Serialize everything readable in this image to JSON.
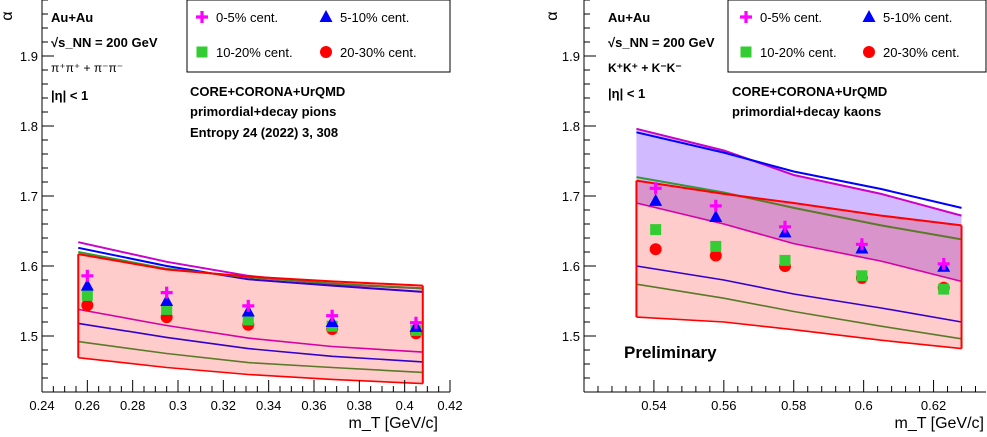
{
  "chart_data": [
    {
      "type": "scatter",
      "panel": "pions",
      "ylabel": "α",
      "xlabel": "m_T [GeV/c]",
      "xlim": [
        0.24,
        0.42
      ],
      "ylim": [
        1.42,
        1.98
      ],
      "xticks": [
        0.24,
        0.26,
        0.28,
        0.3,
        0.32,
        0.34,
        0.36,
        0.38,
        0.4,
        0.42
      ],
      "xtick_labels": [
        "0.24",
        "0.26",
        "0.28",
        "0.3",
        "0.32",
        "0.34",
        "0.36",
        "0.38",
        "0.4",
        "0.42"
      ],
      "yticks": [
        1.5,
        1.6,
        1.7,
        1.8,
        1.9
      ],
      "ytick_labels": [
        "1.5",
        "1.6",
        "1.7",
        "1.8",
        "1.9"
      ],
      "grid": false,
      "info": {
        "system": "Au+Au",
        "energy": "√s_NN = 200 GeV",
        "particles": "π⁺π⁺ + π⁻π⁻",
        "eta": "|η| < 1",
        "model_line1": "CORE+CORONA+UrQMD",
        "model_line2": "primordial+decay pions",
        "reference": "Entropy 24 (2022) 3, 308"
      },
      "legend": [
        {
          "label": "0-5% cent.",
          "marker": "plus",
          "color": "#ff00ff"
        },
        {
          "label": "5-10% cent.",
          "marker": "triangle",
          "color": "#0000ff"
        },
        {
          "label": "10-20% cent.",
          "marker": "square",
          "color": "#33cc33"
        },
        {
          "label": "20-30% cent.",
          "marker": "circle",
          "color": "#ff0000"
        }
      ],
      "legend_position": "top-right",
      "series": [
        {
          "name": "0-5% cent.",
          "marker": "plus",
          "color": "#ff00ff",
          "x": [
            0.26,
            0.295,
            0.331,
            0.368,
            0.405
          ],
          "y": [
            1.586,
            1.562,
            1.543,
            1.529,
            1.519
          ]
        },
        {
          "name": "5-10% cent.",
          "marker": "triangle",
          "color": "#0000ff",
          "x": [
            0.26,
            0.295,
            0.331,
            0.368,
            0.405
          ],
          "y": [
            1.572,
            1.55,
            1.535,
            1.52,
            1.513
          ]
        },
        {
          "name": "10-20% cent.",
          "marker": "square",
          "color": "#33cc33",
          "x": [
            0.26,
            0.295,
            0.331,
            0.368,
            0.405
          ],
          "y": [
            1.558,
            1.538,
            1.523,
            1.514,
            1.508
          ]
        },
        {
          "name": "20-30% cent.",
          "marker": "circle",
          "color": "#ff0000",
          "x": [
            0.26,
            0.295,
            0.331,
            0.368,
            0.405
          ],
          "y": [
            1.544,
            1.527,
            1.516,
            1.51,
            1.504
          ]
        }
      ],
      "bands": [
        {
          "color": "#cc00cc",
          "x": [
            0.256,
            0.295,
            0.331,
            0.368,
            0.408
          ],
          "upper": [
            1.634,
            1.606,
            1.586,
            1.574,
            1.568
          ],
          "lower": [
            1.538,
            1.515,
            1.497,
            1.485,
            1.477
          ]
        },
        {
          "color": "#0000ff",
          "x": [
            0.256,
            0.295,
            0.331,
            0.368,
            0.408
          ],
          "upper": [
            1.626,
            1.6,
            1.581,
            1.572,
            1.563
          ],
          "lower": [
            1.518,
            1.498,
            1.482,
            1.471,
            1.463
          ]
        },
        {
          "color": "#339933",
          "x": [
            0.256,
            0.295,
            0.331,
            0.368,
            0.408
          ],
          "upper": [
            1.62,
            1.596,
            1.584,
            1.575,
            1.568
          ],
          "lower": [
            1.492,
            1.475,
            1.462,
            1.455,
            1.448
          ]
        },
        {
          "color": "#ff0000",
          "fill": true,
          "x": [
            0.256,
            0.295,
            0.331,
            0.368,
            0.408
          ],
          "upper": [
            1.617,
            1.595,
            1.585,
            1.578,
            1.572
          ],
          "lower": [
            1.469,
            1.455,
            1.445,
            1.438,
            1.432
          ]
        }
      ]
    },
    {
      "type": "scatter",
      "panel": "kaons",
      "ylabel": "α",
      "xlabel": "m_T [GeV/c]",
      "xlim": [
        0.52,
        0.635
      ],
      "ylim": [
        1.42,
        1.98
      ],
      "xticks": [
        0.54,
        0.56,
        0.58,
        0.6,
        0.62
      ],
      "xtick_labels": [
        "0.54",
        "0.56",
        "0.58",
        "0.6",
        "0.62"
      ],
      "yticks": [
        1.5,
        1.6,
        1.7,
        1.8,
        1.9
      ],
      "ytick_labels": [
        "1.5",
        "1.6",
        "1.7",
        "1.8",
        "1.9"
      ],
      "grid": false,
      "info": {
        "system": "Au+Au",
        "energy": "√s_NN = 200 GeV",
        "particles": "K⁺K⁺ + K⁻K⁻",
        "eta": "|η| < 1",
        "model_line1": "CORE+CORONA+UrQMD",
        "model_line2": "primordial+decay kaons",
        "status": "Preliminary"
      },
      "legend": [
        {
          "label": "0-5% cent.",
          "marker": "plus",
          "color": "#ff00ff"
        },
        {
          "label": "5-10% cent.",
          "marker": "triangle",
          "color": "#0000ff"
        },
        {
          "label": "10-20% cent.",
          "marker": "square",
          "color": "#33cc33"
        },
        {
          "label": "20-30% cent.",
          "marker": "circle",
          "color": "#ff0000"
        }
      ],
      "legend_position": "top-right",
      "series": [
        {
          "name": "0-5% cent.",
          "marker": "plus",
          "color": "#ff00ff",
          "x": [
            0.5405,
            0.5577,
            0.5775,
            0.5995,
            0.6229
          ],
          "y": [
            1.711,
            1.686,
            1.656,
            1.631,
            1.603
          ]
        },
        {
          "name": "5-10% cent.",
          "marker": "triangle",
          "color": "#0000ff",
          "x": [
            0.5405,
            0.5577,
            0.5775,
            0.5995,
            0.6229
          ],
          "y": [
            1.693,
            1.67,
            1.648,
            1.625,
            1.599
          ]
        },
        {
          "name": "10-20% cent.",
          "marker": "square",
          "color": "#33cc33",
          "x": [
            0.5405,
            0.5577,
            0.5775,
            0.5995,
            0.6229
          ],
          "y": [
            1.652,
            1.628,
            1.608,
            1.586,
            1.567
          ]
        },
        {
          "name": "20-30% cent.",
          "marker": "circle",
          "color": "#ff0000",
          "x": [
            0.5405,
            0.5577,
            0.5775,
            0.5995,
            0.6229
          ],
          "y": [
            1.624,
            1.615,
            1.6,
            1.583,
            1.569
          ]
        }
      ],
      "bands": [
        {
          "color": "#cc00cc",
          "fill_color": "#9966ff",
          "fill": true,
          "x": [
            0.535,
            0.56,
            0.58,
            0.605,
            0.628
          ],
          "upper": [
            1.796,
            1.765,
            1.73,
            1.703,
            1.672
          ],
          "lower": [
            1.69,
            1.66,
            1.632,
            1.607,
            1.578
          ]
        },
        {
          "color": "#0000ff",
          "x": [
            0.535,
            0.56,
            0.58,
            0.605,
            0.628
          ],
          "upper": [
            1.791,
            1.762,
            1.735,
            1.71,
            1.683
          ],
          "lower": [
            1.6,
            1.58,
            1.56,
            1.54,
            1.52
          ]
        },
        {
          "color": "#339933",
          "x": [
            0.535,
            0.56,
            0.58,
            0.605,
            0.628
          ],
          "upper": [
            1.727,
            1.705,
            1.683,
            1.658,
            1.638
          ],
          "lower": [
            1.574,
            1.554,
            1.535,
            1.514,
            1.496
          ]
        },
        {
          "color": "#ff0000",
          "fill": true,
          "x": [
            0.535,
            0.56,
            0.58,
            0.605,
            0.628
          ],
          "upper": [
            1.722,
            1.703,
            1.69,
            1.672,
            1.658
          ],
          "lower": [
            1.527,
            1.52,
            1.509,
            1.494,
            1.482
          ]
        }
      ]
    }
  ]
}
